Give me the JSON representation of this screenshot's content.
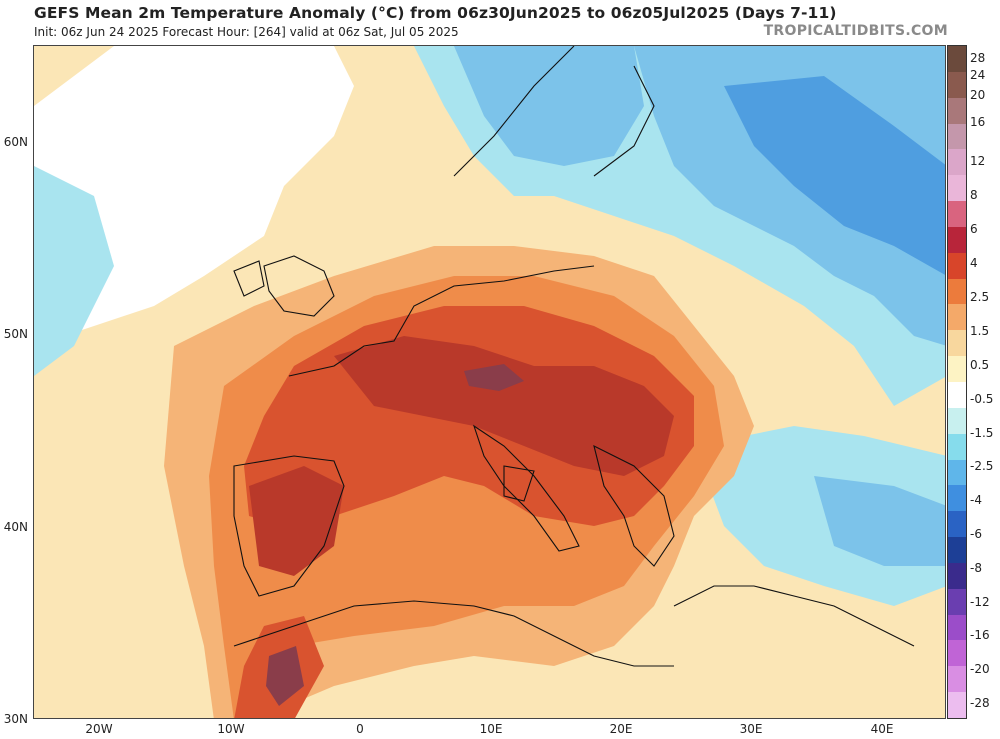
{
  "header": {
    "title": "GEFS Mean 2m Temperature Anomaly (°C) from 06z30Jun2025 to 06z05Jul2025 (Days 7-11)",
    "subtitle": "Init: 06z Jun 24 2025   Forecast Hour: [264]   valid at 06z Sat, Jul 05 2025",
    "brand": "TROPICALTIDBITS.COM"
  },
  "axes": {
    "lat_labels": [
      "60N",
      "50N",
      "40N",
      "30N"
    ],
    "lon_labels": [
      "20W",
      "10W",
      "0",
      "10E",
      "20E",
      "30E",
      "40E"
    ]
  },
  "colorbar": {
    "labels": [
      "28",
      "24",
      "20",
      "16",
      "12",
      "8",
      "6",
      "4",
      "2.5",
      "1.5",
      "0.5",
      "-0.5",
      "-1.5",
      "-2.5",
      "-4",
      "-6",
      "-8",
      "-12",
      "-16",
      "-20",
      "-28"
    ],
    "colors": [
      "#6b4a3c",
      "#8a5a4e",
      "#a9787a",
      "#c497ab",
      "#dba6c9",
      "#eab6d9",
      "#d9647f",
      "#b8253a",
      "#d8452a",
      "#ec7b3c",
      "#f4a969",
      "#f8d79e",
      "#fdf3c4",
      "#ffffff",
      "#c8f0ef",
      "#86dcec",
      "#5fb6ea",
      "#3f8fe0",
      "#2a63c4",
      "#1d3f96",
      "#3a2b8c",
      "#6a3eb0",
      "#9b4dc9",
      "#c064d6",
      "#d98ee3",
      "#ecbdef"
    ]
  },
  "map": {
    "ocean": "#f6d9a2",
    "warm_core": "#b9392a",
    "hot": "#d9532f",
    "orange": "#ef8c4a",
    "light_orange": "#f5b477",
    "pale": "#fbe6b6",
    "near_zero": "#ffffff",
    "cool_light": "#a9e4ef",
    "cool": "#7cc3ea",
    "cold": "#4f9ee0",
    "extreme": "#8a3d4a"
  }
}
